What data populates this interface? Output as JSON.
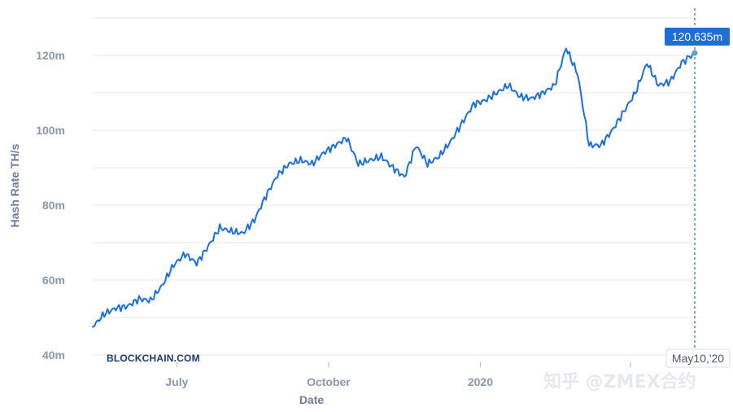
{
  "brand": "BLOCKCHAIN.COM",
  "watermark": "知乎 @ZMEX合约",
  "colors": {
    "line": "#1d6fd6",
    "grid": "#e3e8ef",
    "tick": "#8a96ab",
    "badge": "#1d6fd6",
    "brand": "#1b3a6b"
  },
  "hover": {
    "value_label": "120.635m",
    "date_label": "May10,'20"
  },
  "chart_data": {
    "type": "line",
    "xlabel": "Date",
    "ylabel": "Hash Rate TH/s",
    "ylim": [
      40,
      130
    ],
    "yticks": [
      40,
      60,
      80,
      100,
      120
    ],
    "ytick_labels": [
      "40m",
      "60m",
      "80m",
      "100m",
      "120m"
    ],
    "x_ticks": [
      "July",
      "October",
      "2020",
      "2020-04"
    ],
    "x_tick_labels": [
      "July",
      "October",
      "2020",
      ""
    ],
    "grid": true,
    "legend": "none",
    "series": [
      {
        "x": [
          "2019-05-11",
          "2019-05-18",
          "2019-05-25",
          "2019-06-01",
          "2019-06-08",
          "2019-06-15",
          "2019-06-22",
          "2019-06-29",
          "2019-07-06",
          "2019-07-13",
          "2019-07-20",
          "2019-07-27",
          "2019-08-03",
          "2019-08-10",
          "2019-08-17",
          "2019-08-24",
          "2019-08-31",
          "2019-09-07",
          "2019-09-14",
          "2019-09-21",
          "2019-09-28",
          "2019-10-05",
          "2019-10-12",
          "2019-10-19",
          "2019-10-26",
          "2019-11-02",
          "2019-11-09",
          "2019-11-16",
          "2019-11-23",
          "2019-11-30",
          "2019-12-07",
          "2019-12-14",
          "2019-12-21",
          "2019-12-28",
          "2020-01-04",
          "2020-01-11",
          "2020-01-18",
          "2020-01-25",
          "2020-02-01",
          "2020-02-08",
          "2020-02-15",
          "2020-02-22",
          "2020-02-29",
          "2020-03-07",
          "2020-03-14",
          "2020-03-21",
          "2020-03-28",
          "2020-04-04",
          "2020-04-11",
          "2020-04-18",
          "2020-04-25",
          "2020-05-02",
          "2020-05-10"
        ],
        "values": [
          47.5,
          51,
          52.5,
          53,
          55,
          54.5,
          58.5,
          64,
          67,
          64.5,
          69,
          74,
          73,
          72.5,
          76,
          82.5,
          88,
          91,
          92,
          91,
          94,
          96,
          98,
          91,
          92,
          93,
          90,
          87.5,
          96,
          91,
          93,
          97,
          102,
          107,
          108,
          110,
          112,
          109,
          108.5,
          110,
          112,
          122,
          115,
          96,
          96,
          100,
          105,
          110,
          118,
          112,
          113,
          118,
          120.635
        ]
      }
    ]
  }
}
